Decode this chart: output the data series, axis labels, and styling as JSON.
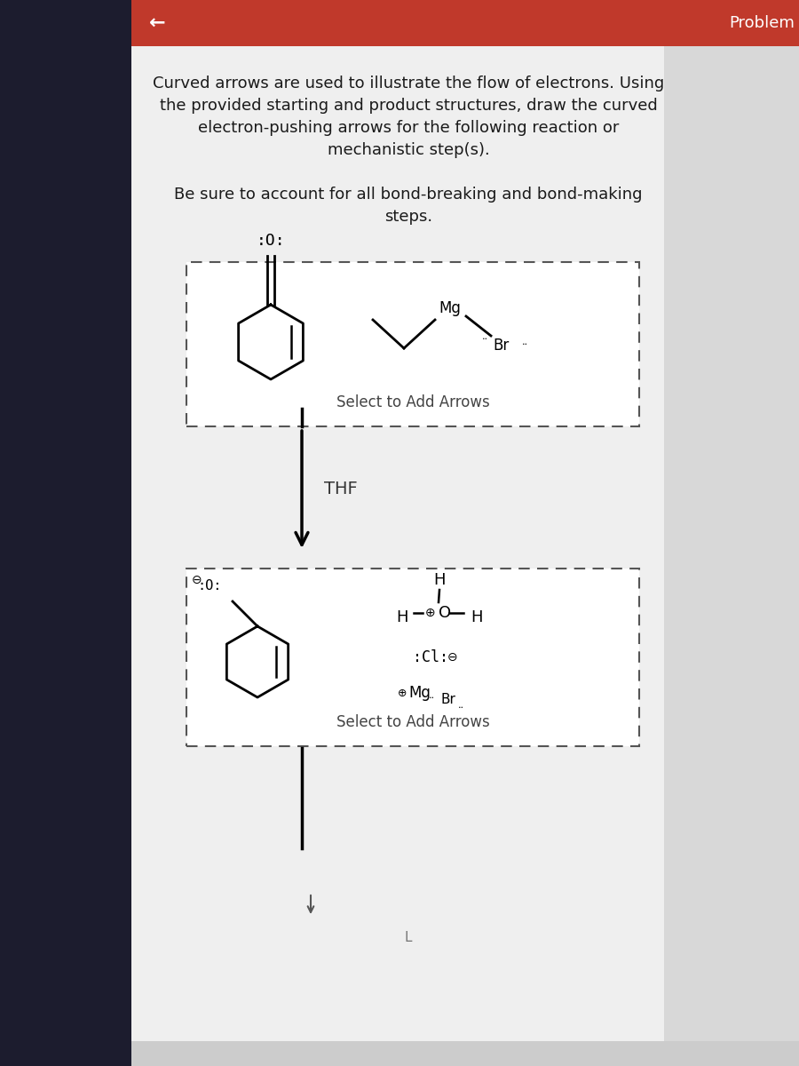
{
  "header_color": "#c0392b",
  "back_arrow": "←",
  "problem_label": "Problem",
  "dark_sidebar_color": "#1a1a2e",
  "content_bg": "#e8e8e8",
  "white_panel_color": "#f2f2f2",
  "title_text_line1": "Curved arrows are used to illustrate the flow of electrons. Using",
  "title_text_line2": "the provided starting and product structures, draw the curved",
  "title_text_line3": "electron-pushing arrows for the following reaction or",
  "title_text_line4": "mechanistic step(s).",
  "subtitle_line1": "Be sure to account for all bond-breaking and bond-making",
  "subtitle_line2": "steps.",
  "thf_label": "THF",
  "select_arrows_text": "Select to Add Arrows"
}
